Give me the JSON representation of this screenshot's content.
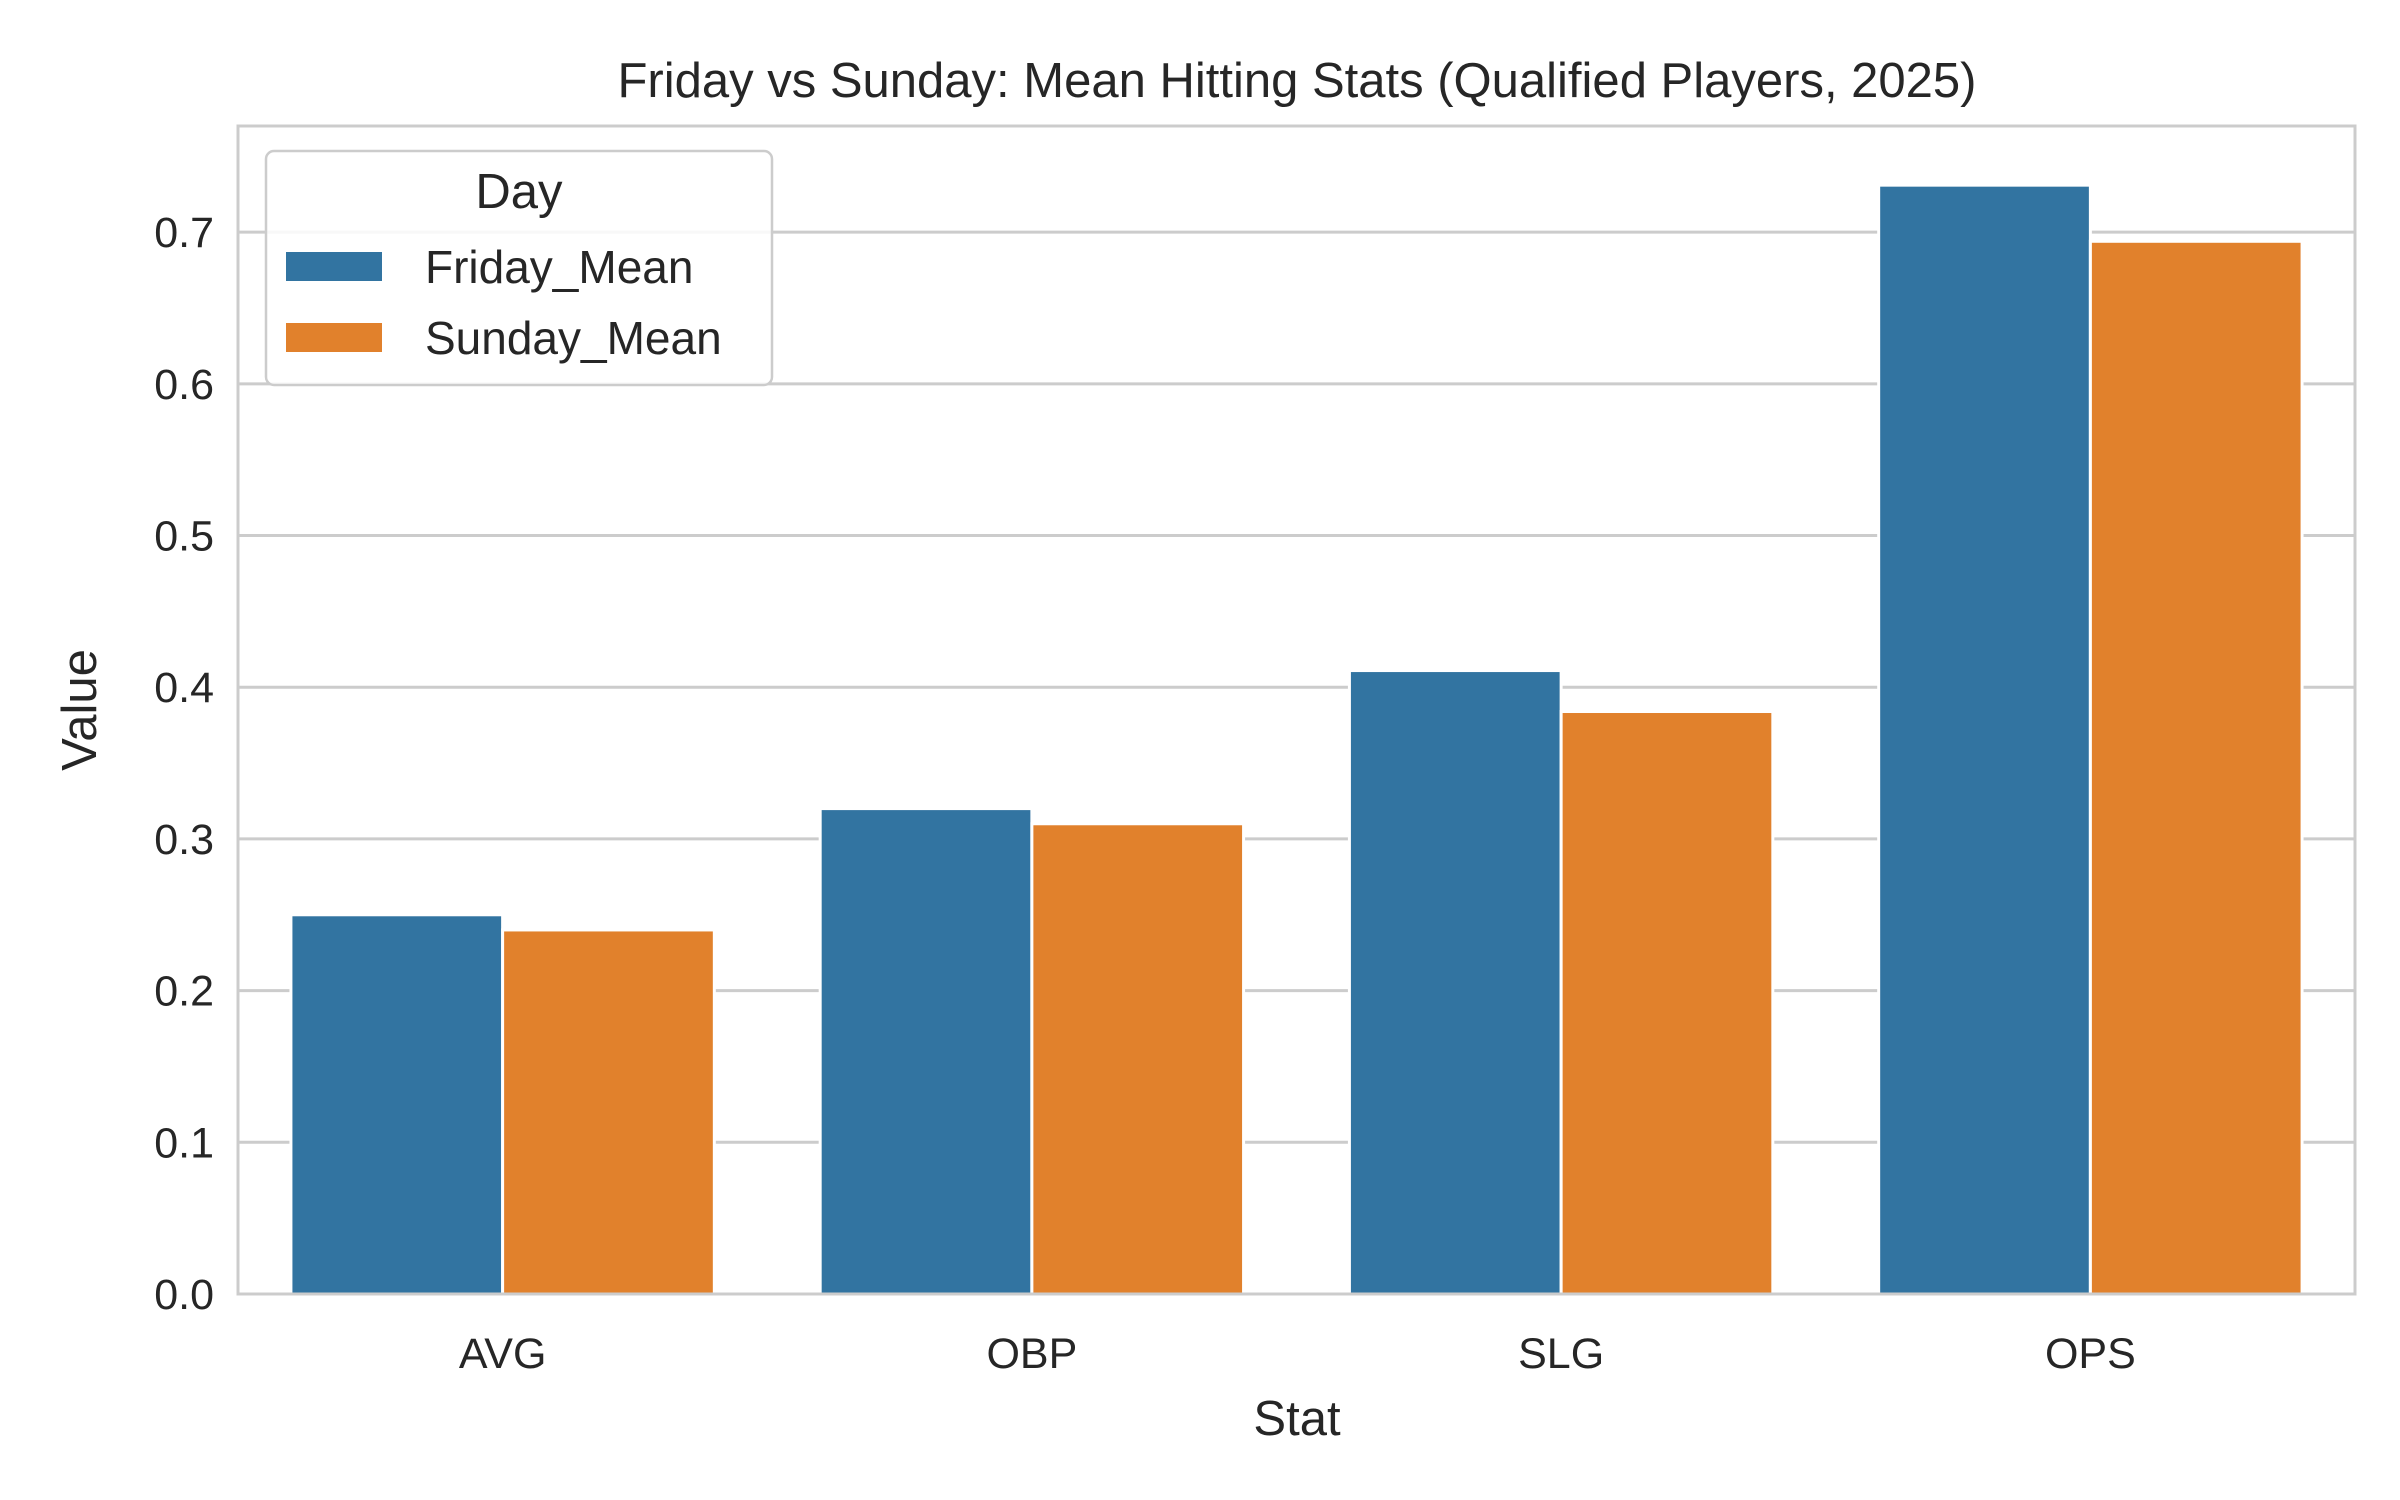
{
  "chart_data": {
    "type": "bar",
    "title": "Friday vs Sunday: Mean Hitting Stats (Qualified Players, 2025)",
    "xlabel": "Stat",
    "ylabel": "Value",
    "categories": [
      "AVG",
      "OBP",
      "SLG",
      "OPS"
    ],
    "series": [
      {
        "name": "Friday_Mean",
        "color": "#3274a1",
        "values": [
          0.25,
          0.32,
          0.411,
          0.731
        ]
      },
      {
        "name": "Sunday_Mean",
        "color": "#e1812c",
        "values": [
          0.24,
          0.31,
          0.384,
          0.694
        ]
      }
    ],
    "ylim": [
      0,
      0.77
    ],
    "yticks": [
      0.0,
      0.1,
      0.2,
      0.3,
      0.4,
      0.5,
      0.6,
      0.7
    ],
    "ytick_labels": [
      "0.0",
      "0.1",
      "0.2",
      "0.3",
      "0.4",
      "0.5",
      "0.6",
      "0.7"
    ],
    "legend": {
      "title": "Day",
      "placement": "top-left"
    },
    "grid": "y"
  }
}
